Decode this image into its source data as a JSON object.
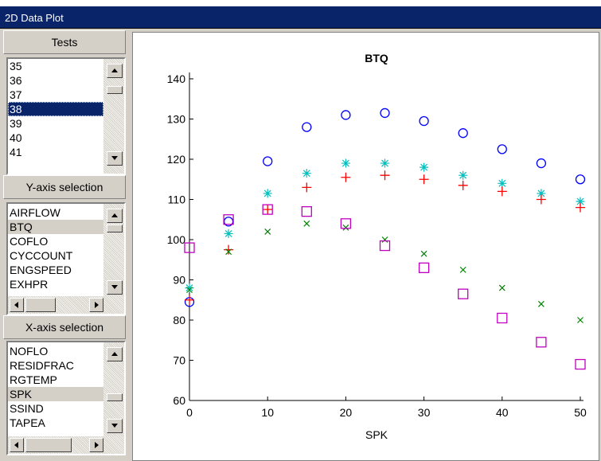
{
  "window": {
    "title": "2D Data Plot"
  },
  "panel": {
    "tests": {
      "header": "Tests",
      "items": [
        "35",
        "36",
        "37",
        "38",
        "39",
        "40",
        "41"
      ],
      "selected": "38"
    },
    "y_axis": {
      "header": "Y-axis selection",
      "items": [
        "AIRFLOW",
        "BTQ",
        "COFLO",
        "CYCCOUNT",
        "ENGSPEED",
        "EXHPR"
      ],
      "selected": "BTQ"
    },
    "x_axis": {
      "header": "X-axis selection",
      "items": [
        "NOFLO",
        "RESIDFRAC",
        "RGTEMP",
        "SPK",
        "SSIND",
        "TAPEA"
      ],
      "selected": "SPK"
    }
  },
  "colors": {
    "titlebar": "#0a246a",
    "selection": "#0a246a",
    "series_circle": "#0000ff",
    "series_star": "#00bfbf",
    "series_plus": "#ff0000",
    "series_x": "#008000",
    "series_square": "#bf00bf"
  },
  "chart_data": {
    "type": "scatter",
    "title": "BTQ",
    "xlabel": "SPK",
    "ylabel": "",
    "xlim": [
      0,
      50
    ],
    "ylim": [
      60,
      140
    ],
    "xticks": [
      0,
      10,
      20,
      30,
      40,
      50
    ],
    "yticks": [
      60,
      70,
      80,
      90,
      100,
      110,
      120,
      130,
      140
    ],
    "grid": false,
    "x": [
      0,
      5,
      10,
      15,
      20,
      25,
      30,
      35,
      40,
      45,
      50
    ],
    "series": [
      {
        "marker": "circle",
        "color": "#0000ff",
        "values": [
          84.5,
          104.5,
          119.5,
          128,
          131,
          131.5,
          129.5,
          126.5,
          122.5,
          119,
          115
        ]
      },
      {
        "marker": "star",
        "color": "#00bfbf",
        "values": [
          88,
          101.5,
          111.5,
          116.5,
          119,
          119,
          118,
          116,
          114,
          111.5,
          109.5
        ]
      },
      {
        "marker": "plus",
        "color": "#ff0000",
        "values": [
          85,
          97.5,
          107.5,
          113,
          115.5,
          116,
          115,
          113.5,
          112,
          110,
          108
        ]
      },
      {
        "marker": "x",
        "color": "#008000",
        "values": [
          87.5,
          97,
          102,
          104,
          103,
          100,
          96.5,
          92.5,
          88,
          84,
          80
        ]
      },
      {
        "marker": "square",
        "color": "#bf00bf",
        "values": [
          98,
          105,
          107.5,
          107,
          104,
          98.5,
          93,
          86.5,
          80.5,
          74.5,
          69
        ]
      }
    ]
  }
}
